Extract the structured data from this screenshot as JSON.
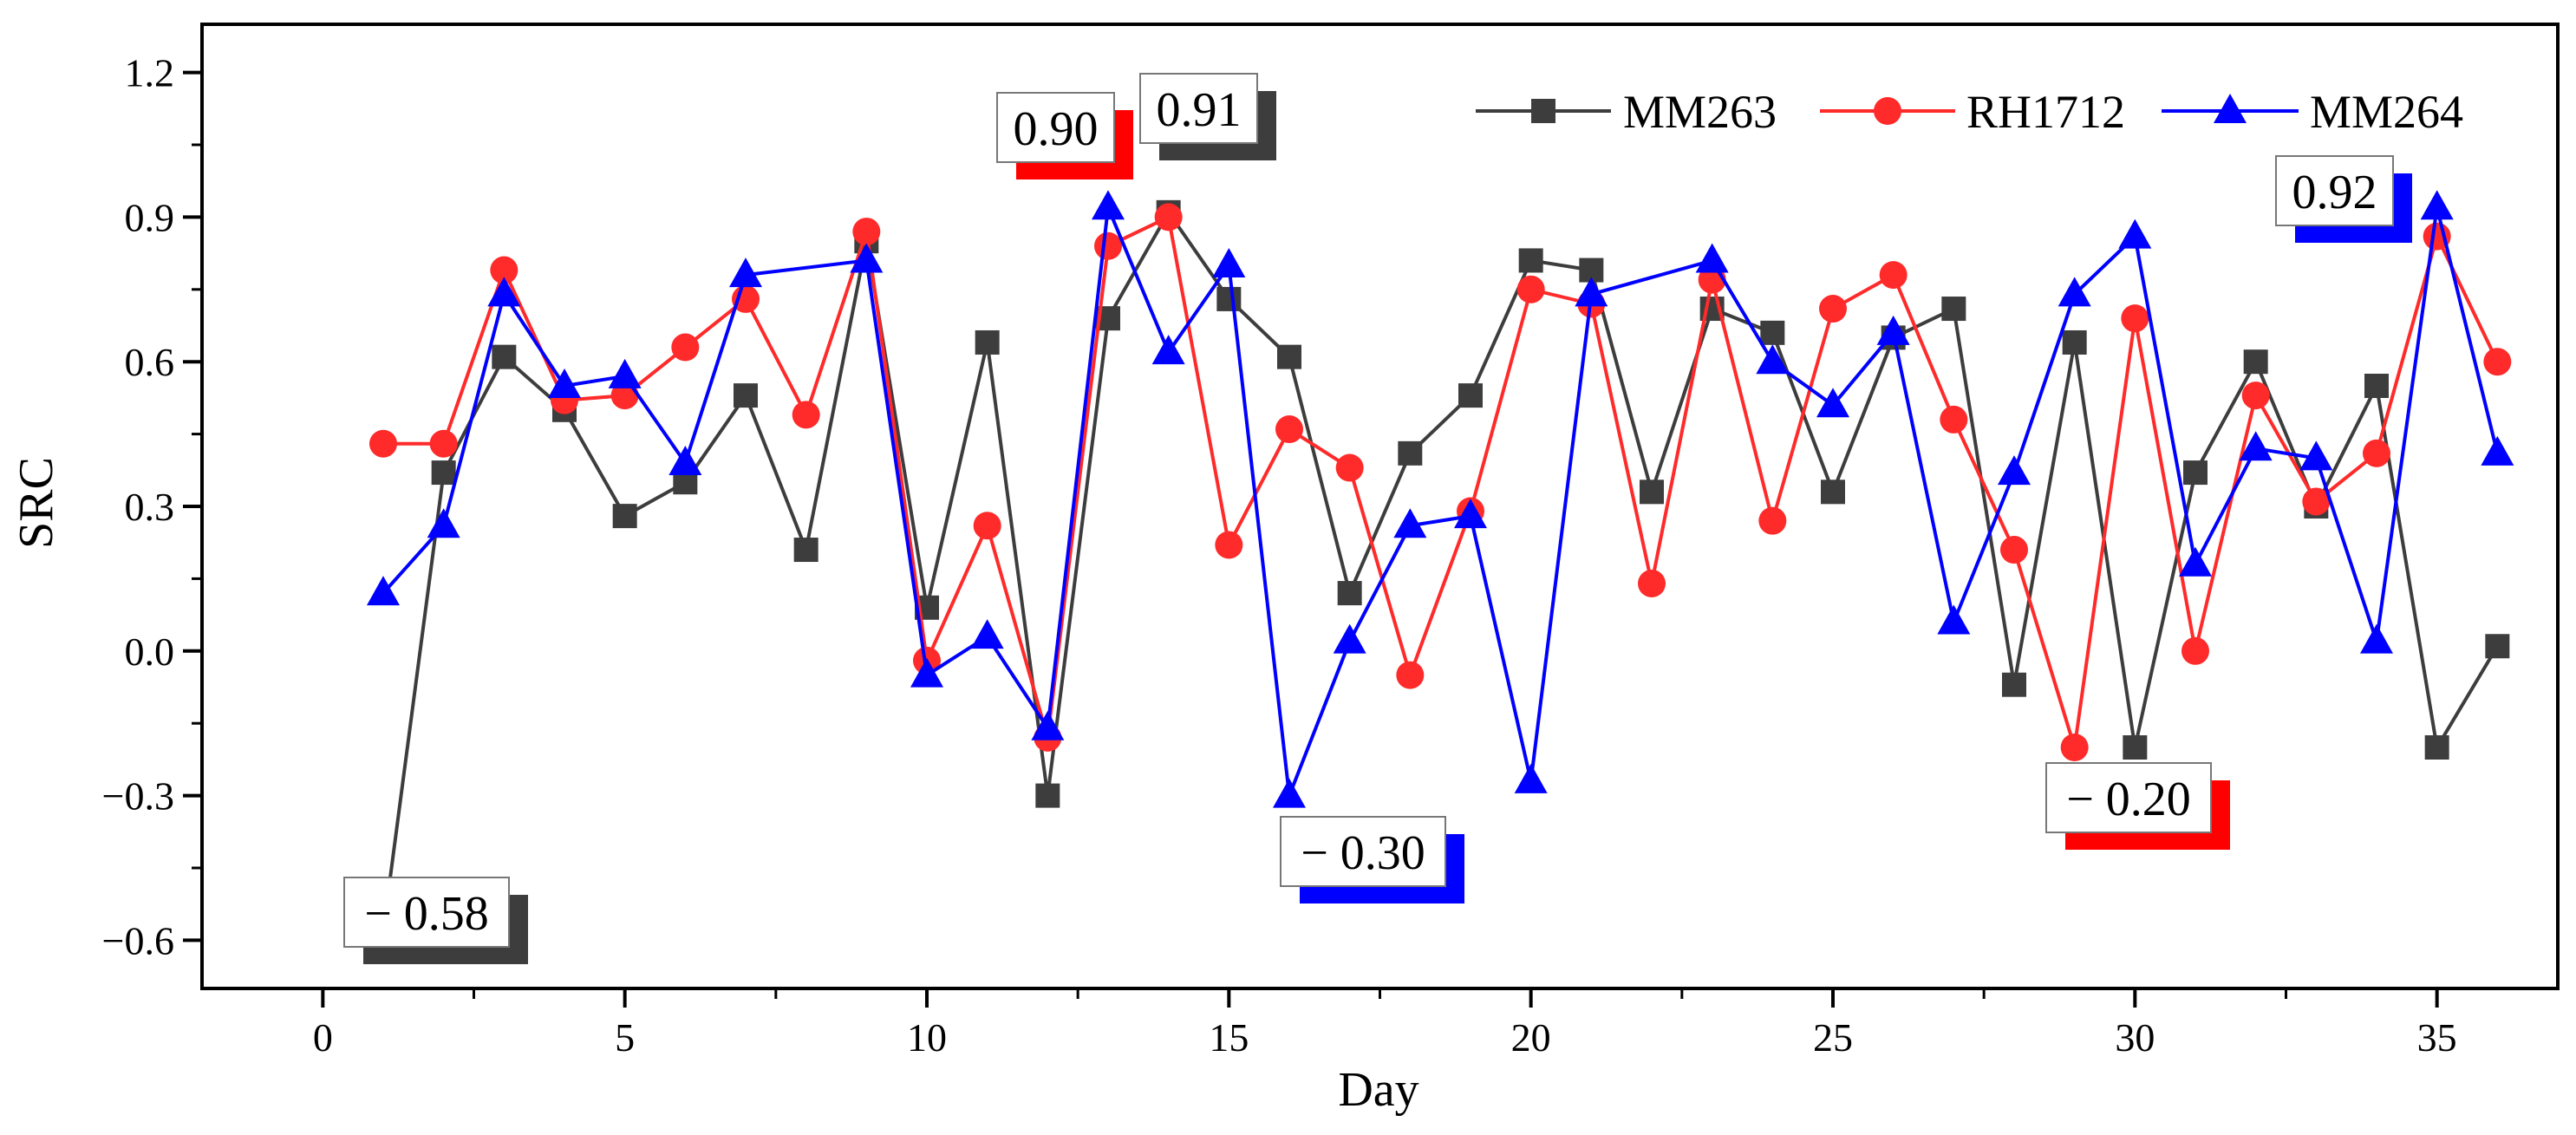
{
  "chart_data": {
    "type": "line",
    "title": "",
    "xlabel": "Day",
    "ylabel": "SRC",
    "xlim": [
      -2,
      37
    ],
    "ylim": [
      -0.7,
      1.3
    ],
    "xticks": [
      0,
      5,
      10,
      15,
      20,
      25,
      30,
      35
    ],
    "yticks": [
      -0.6,
      -0.3,
      0.0,
      0.3,
      0.6,
      0.9,
      1.2
    ],
    "x": [
      1,
      2,
      3,
      4,
      5,
      6,
      7,
      8,
      9,
      10,
      11,
      12,
      13,
      14,
      15,
      16,
      17,
      18,
      19,
      20,
      21,
      22,
      23,
      24,
      25,
      26,
      27,
      28,
      29,
      30,
      31,
      32,
      33,
      34,
      35,
      36
    ],
    "series": [
      {
        "name": "MM263",
        "color": "#3d3d3d",
        "marker": "square",
        "values": [
          -0.58,
          0.37,
          0.61,
          0.5,
          0.28,
          0.35,
          0.53,
          0.21,
          0.85,
          0.09,
          0.64,
          -0.3,
          0.69,
          0.91,
          0.73,
          0.61,
          0.12,
          0.41,
          0.53,
          0.81,
          0.79,
          0.33,
          0.71,
          0.66,
          0.33,
          0.65,
          0.71,
          -0.07,
          0.64,
          -0.2,
          0.37,
          0.6,
          0.3,
          0.55,
          -0.2,
          0.01
        ]
      },
      {
        "name": "RH1712",
        "color": "#ff2a2a",
        "marker": "circle",
        "values": [
          0.43,
          0.43,
          0.79,
          0.52,
          0.53,
          0.63,
          0.73,
          0.49,
          0.87,
          -0.02,
          0.26,
          -0.18,
          0.84,
          0.9,
          0.22,
          0.46,
          0.38,
          -0.05,
          0.29,
          0.75,
          0.72,
          0.14,
          0.77,
          0.27,
          0.71,
          0.78,
          0.48,
          0.21,
          -0.2,
          0.69,
          0.0,
          0.53,
          0.31,
          0.41,
          0.86,
          0.6
        ]
      },
      {
        "name": "MM264",
        "color": "#0000ff",
        "marker": "triangle",
        "values": [
          0.12,
          0.26,
          0.74,
          0.55,
          0.57,
          0.39,
          0.78,
          null,
          0.81,
          -0.05,
          0.03,
          -0.16,
          0.92,
          0.62,
          0.8,
          -0.3,
          0.02,
          0.26,
          0.28,
          -0.27,
          0.74,
          null,
          0.81,
          0.6,
          0.51,
          0.66,
          0.06,
          0.37,
          0.74,
          0.86,
          0.18,
          0.42,
          0.4,
          0.02,
          0.92,
          0.41
        ]
      }
    ],
    "legend_position": "top-right",
    "annotations": [
      {
        "text": "− 0.58",
        "color": "#3d3d3d",
        "series": "MM263",
        "day": 1,
        "value": -0.58
      },
      {
        "text": "0.90",
        "color": "#ff0000",
        "series": "RH1712",
        "day": 14,
        "value": 0.9
      },
      {
        "text": "0.91",
        "color": "#3d3d3d",
        "series": "MM263",
        "day": 14,
        "value": 0.91
      },
      {
        "text": "− 0.30",
        "color": "#0000ff",
        "series": "MM264",
        "day": 16,
        "value": -0.3
      },
      {
        "text": "− 0.20",
        "color": "#ff0000",
        "series": "RH1712",
        "day": 29,
        "value": -0.2
      },
      {
        "text": "0.92",
        "color": "#0000ff",
        "series": "MM264",
        "day": 35,
        "value": 0.92
      }
    ]
  }
}
